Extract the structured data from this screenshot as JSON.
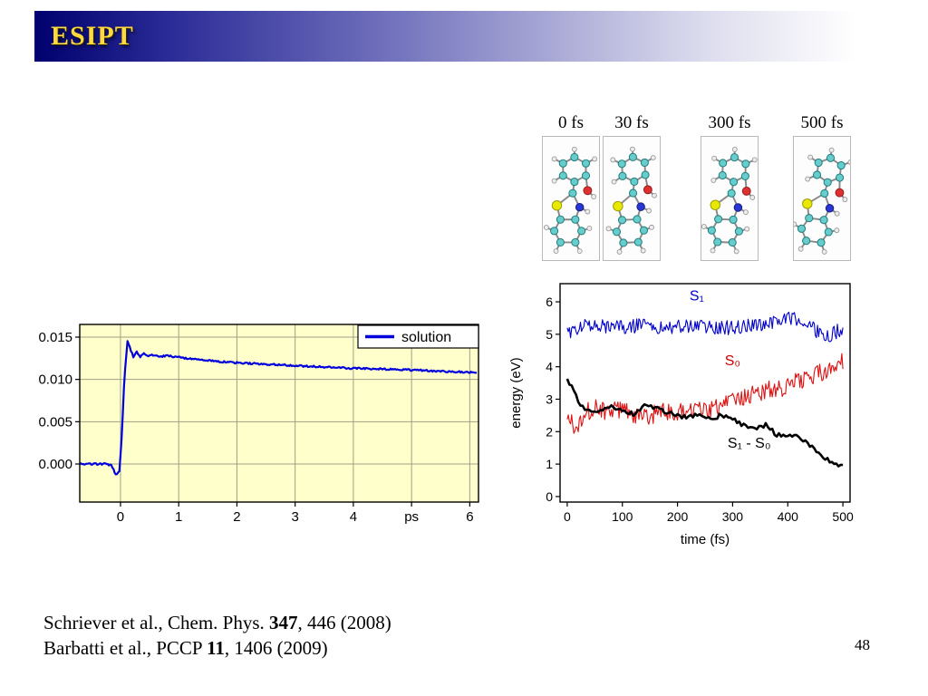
{
  "slide": {
    "title": "ESIPT",
    "page_number": "48",
    "accent_color": "#00006e",
    "title_color": "#ffd83d",
    "background": "#ffffff"
  },
  "molecule_strip": {
    "panels": [
      {
        "label": "0 fs"
      },
      {
        "label": "30 fs"
      },
      {
        "label": "300 fs"
      },
      {
        "label": "500 fs"
      }
    ],
    "atom_colors": {
      "carbon": "#66cccc",
      "hydrogen": "#ededed",
      "oxygen": "#e03030",
      "nitrogen": "#2a35d6",
      "sulfur": "#e8e800"
    }
  },
  "references": [
    {
      "prefix": "Schriever et al., Chem. Phys. ",
      "bold": "347",
      "suffix": ", 446 (2008)"
    },
    {
      "prefix": "Barbatti et al., PCCP ",
      "bold": "11",
      "suffix": ", 1406 (2009)"
    }
  ],
  "chart_data": [
    {
      "name": "solution-decay",
      "type": "line",
      "title": "",
      "xlabel": "ps",
      "ylabel": "",
      "xlim": [
        -0.7,
        6.15
      ],
      "ylim": [
        -0.0045,
        0.0165
      ],
      "x_tick_values": [
        0,
        1,
        2,
        3,
        4,
        5,
        6
      ],
      "x_tick_labels": [
        "0",
        "1",
        "2",
        "3",
        "4",
        "ps",
        "6"
      ],
      "y_tick_values": [
        0,
        0.005,
        0.01,
        0.015
      ],
      "y_tick_labels": [
        "0.000",
        "0.005",
        "0.010",
        "0.015"
      ],
      "grid": true,
      "plot_background": "#ffffcc",
      "legend": {
        "position": "top-right",
        "entries": [
          {
            "label": "solution",
            "color": "#0000dd"
          }
        ]
      },
      "series": [
        {
          "name": "solution",
          "color": "#0000dd",
          "width": 2.2,
          "noise": 0.0001,
          "sample_step": 0.02,
          "anchors_x": [
            -0.7,
            -0.25,
            -0.15,
            -0.08,
            -0.02,
            0.02,
            0.07,
            0.12,
            0.17,
            0.22,
            0.28,
            0.34,
            0.4,
            0.47,
            0.55,
            0.65,
            0.8,
            1.0,
            1.3,
            1.7,
            2.2,
            2.8,
            3.4,
            4.0,
            4.7,
            5.4,
            6.13
          ],
          "anchors_y": [
            0.0,
            0.0,
            -0.0002,
            -0.0013,
            -0.0008,
            0.003,
            0.0105,
            0.0145,
            0.0136,
            0.0127,
            0.0133,
            0.0126,
            0.0131,
            0.0127,
            0.0129,
            0.0127,
            0.0128,
            0.0126,
            0.0124,
            0.0121,
            0.0119,
            0.0117,
            0.0115,
            0.0113,
            0.0112,
            0.011,
            0.0108
          ]
        }
      ]
    },
    {
      "name": "trajectory-energies",
      "type": "line",
      "title": "",
      "xlabel": "time (fs)",
      "ylabel": "energy (eV)",
      "xlim": [
        -13,
        513
      ],
      "ylim": [
        -0.17,
        6.56
      ],
      "x_tick_values": [
        0,
        100,
        200,
        300,
        400,
        500
      ],
      "x_tick_labels": [
        "0",
        "100",
        "200",
        "300",
        "400",
        "500"
      ],
      "y_tick_values": [
        0,
        1,
        2,
        3,
        4,
        5,
        6
      ],
      "y_tick_labels": [
        "0",
        "1",
        "2",
        "3",
        "4",
        "5",
        "6"
      ],
      "grid": false,
      "plot_background": "#ffffff",
      "annotations": [
        {
          "text": "S₁",
          "x": 235,
          "y": 6.05,
          "color": "#0000cc"
        },
        {
          "text": "S₀",
          "x": 300,
          "y": 4.05,
          "color": "#cc0000"
        },
        {
          "text": "S₁ - S₀",
          "x": 330,
          "y": 1.5,
          "color": "#000000"
        }
      ],
      "series": [
        {
          "name": "S1",
          "color": "#0000cc",
          "width": 1.1,
          "noise": 0.22,
          "sample_step": 2,
          "anchors_x": [
            0,
            30,
            60,
            100,
            140,
            180,
            220,
            260,
            300,
            340,
            380,
            410,
            430,
            450,
            465,
            480,
            500
          ],
          "anchors_y": [
            5.0,
            5.3,
            5.25,
            5.2,
            5.3,
            5.2,
            5.25,
            5.2,
            5.2,
            5.3,
            5.35,
            5.5,
            5.3,
            5.15,
            4.9,
            5.0,
            5.2
          ]
        },
        {
          "name": "S0",
          "color": "#dd1111",
          "width": 1.1,
          "noise": 0.28,
          "sample_step": 2,
          "anchors_x": [
            0,
            15,
            30,
            50,
            70,
            90,
            110,
            130,
            150,
            170,
            190,
            210,
            230,
            250,
            270,
            290,
            310,
            330,
            350,
            370,
            390,
            410,
            430,
            450,
            470,
            485,
            500
          ],
          "anchors_y": [
            2.6,
            2.1,
            2.5,
            2.8,
            2.6,
            2.7,
            2.6,
            2.45,
            2.5,
            2.6,
            2.6,
            2.65,
            2.6,
            2.7,
            2.75,
            2.85,
            3.0,
            3.1,
            3.2,
            3.3,
            3.35,
            3.5,
            3.6,
            3.75,
            3.9,
            4.0,
            4.2
          ]
        },
        {
          "name": "S1-S0",
          "color": "#000000",
          "width": 2.6,
          "noise": 0.07,
          "sample_step": 4,
          "anchors_x": [
            0,
            8,
            18,
            30,
            45,
            60,
            80,
            100,
            120,
            140,
            160,
            180,
            200,
            220,
            240,
            260,
            280,
            300,
            320,
            340,
            360,
            380,
            400,
            415,
            430,
            445,
            460,
            475,
            490,
            500
          ],
          "anchors_y": [
            3.62,
            3.4,
            3.0,
            2.7,
            2.6,
            2.7,
            2.78,
            2.6,
            2.55,
            2.8,
            2.75,
            2.6,
            2.5,
            2.45,
            2.5,
            2.4,
            2.5,
            2.42,
            2.2,
            2.1,
            2.2,
            1.9,
            1.85,
            1.95,
            1.7,
            1.5,
            1.3,
            1.1,
            0.95,
            1.0
          ]
        }
      ]
    }
  ]
}
